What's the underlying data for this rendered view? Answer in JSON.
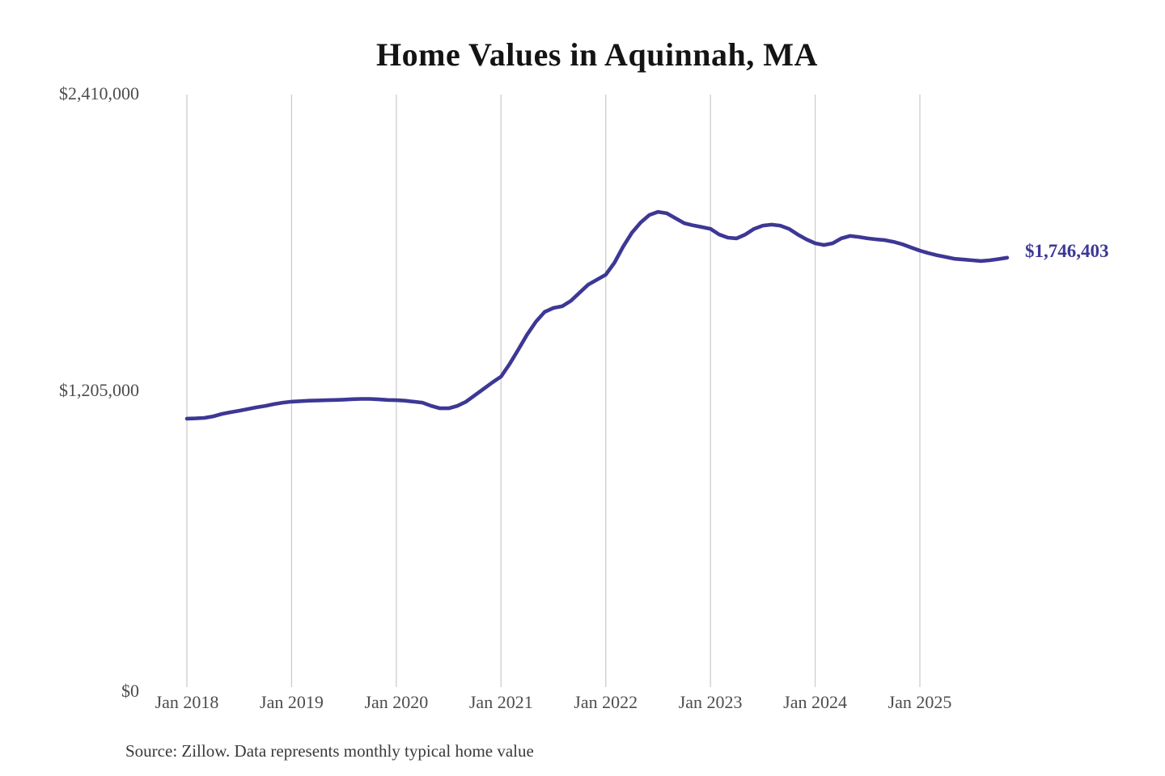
{
  "chart": {
    "title": "Home Values in Aquinnah, MA",
    "end_label": "$1,746,403",
    "source_note": "Source: Zillow. Data represents monthly typical home value",
    "line_color": "#3d3795",
    "gridline_color": "#cdcdcd",
    "axis_text_color": "#4d4d4d"
  },
  "chart_data": {
    "type": "line",
    "title": "Home Values in Aquinnah, MA",
    "series_name": "Monthly typical home value (USD)",
    "frequency": "monthly",
    "start_month": "Jan 2018",
    "end_month": "Nov 2025",
    "x_tick_labels": [
      "Jan 2018",
      "Jan 2019",
      "Jan 2020",
      "Jan 2021",
      "Jan 2022",
      "Jan 2023",
      "Jan 2024",
      "Jan 2025"
    ],
    "y_ticks": [
      {
        "label": "$0",
        "value": 0
      },
      {
        "label": "$1,205,000",
        "value": 1205000
      },
      {
        "label": "$2,410,000",
        "value": 2410000
      }
    ],
    "ylim": [
      0,
      2410000
    ],
    "grid": "vertical-only",
    "legend": "none",
    "last_value_annotation": "$1,746,403",
    "values": [
      1092000,
      1093000,
      1095000,
      1101000,
      1111000,
      1118000,
      1124000,
      1131000,
      1138000,
      1144000,
      1151000,
      1157000,
      1161000,
      1163000,
      1165000,
      1166000,
      1167000,
      1168000,
      1169000,
      1171000,
      1172000,
      1172000,
      1170000,
      1168000,
      1167000,
      1165000,
      1161000,
      1157000,
      1144000,
      1134000,
      1134000,
      1144000,
      1161000,
      1187000,
      1213000,
      1239000,
      1263000,
      1315000,
      1374000,
      1434000,
      1486000,
      1526000,
      1542000,
      1549000,
      1571000,
      1604000,
      1637000,
      1657000,
      1677000,
      1726000,
      1792000,
      1848000,
      1890000,
      1920000,
      1933000,
      1927000,
      1907000,
      1887000,
      1878000,
      1871000,
      1864000,
      1841000,
      1828000,
      1825000,
      1841000,
      1864000,
      1877000,
      1881000,
      1877000,
      1864000,
      1841000,
      1821000,
      1805000,
      1798000,
      1805000,
      1825000,
      1835000,
      1831000,
      1825000,
      1821000,
      1818000,
      1811000,
      1801000,
      1788000,
      1775000,
      1765000,
      1756000,
      1749000,
      1742000,
      1739000,
      1736000,
      1733000,
      1736000,
      1741000,
      1746403
    ]
  }
}
